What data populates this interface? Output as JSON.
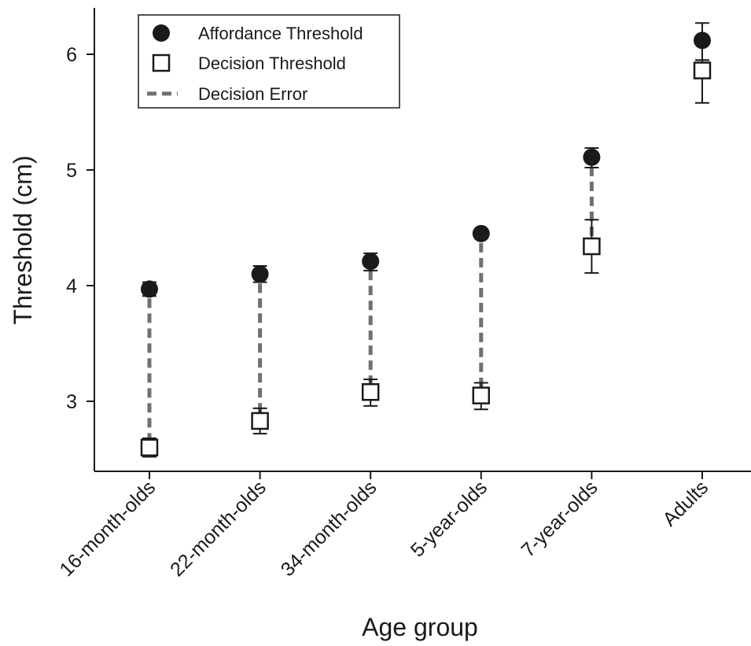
{
  "chart_data": {
    "type": "scatter",
    "xlabel": "Age group",
    "ylabel": "Threshold (cm)",
    "categories": [
      "16-month-olds",
      "22-month-olds",
      "34-month-olds",
      "5-year-olds",
      "7-year-olds",
      "Adults"
    ],
    "ylim": [
      2.4,
      6.4
    ],
    "yticks": [
      3,
      4,
      5,
      6
    ],
    "grid": false,
    "legend": "top-left",
    "series": [
      {
        "name": "Affordance Threshold",
        "marker": "filled-circle",
        "color": "#1a1a1a",
        "values": [
          3.97,
          4.1,
          4.21,
          4.45,
          5.11,
          6.12
        ],
        "err_low": [
          3.91,
          4.03,
          4.13,
          4.45,
          5.02,
          5.95
        ],
        "err_high": [
          4.03,
          4.17,
          4.28,
          4.45,
          5.19,
          6.27
        ]
      },
      {
        "name": "Decision Threshold",
        "marker": "open-square",
        "color": "#1a1a1a",
        "values": [
          2.6,
          2.83,
          3.08,
          3.05,
          4.34,
          5.86
        ],
        "err_low": [
          2.52,
          2.72,
          2.96,
          2.93,
          4.11,
          5.58
        ],
        "err_high": [
          2.68,
          2.94,
          3.19,
          3.16,
          4.57,
          5.95
        ]
      },
      {
        "name": "Decision Error",
        "marker": "dashed-line",
        "color": "#707070",
        "connects": [
          "Affordance Threshold",
          "Decision Threshold"
        ],
        "show_for": [
          true,
          true,
          true,
          true,
          true,
          false
        ]
      }
    ]
  }
}
